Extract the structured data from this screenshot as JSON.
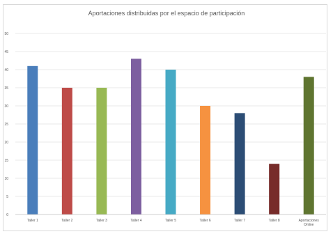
{
  "chart_data": {
    "type": "bar",
    "title": "Aportaciones distribuidas por el espacio de participación",
    "categories": [
      "Taller 1",
      "Taller 2",
      "Taller 3",
      "Taller 4",
      "Taller 5",
      "Taller 6",
      "Taller 7",
      "Taller 8",
      "Aportaciones Online"
    ],
    "values": [
      41,
      35,
      35,
      43,
      40,
      30,
      28,
      14,
      38
    ],
    "colors": [
      "#4a7ebb",
      "#be4b48",
      "#98b954",
      "#7d5fa0",
      "#46aac5",
      "#f69240",
      "#2c4d75",
      "#772c2a",
      "#5f7530"
    ],
    "yticks": [
      "0",
      "5",
      "10",
      "15",
      "20",
      "25",
      "30",
      "35",
      "40",
      "45",
      "50"
    ],
    "ylim": [
      0,
      50
    ],
    "grid": true,
    "legend": "none"
  }
}
